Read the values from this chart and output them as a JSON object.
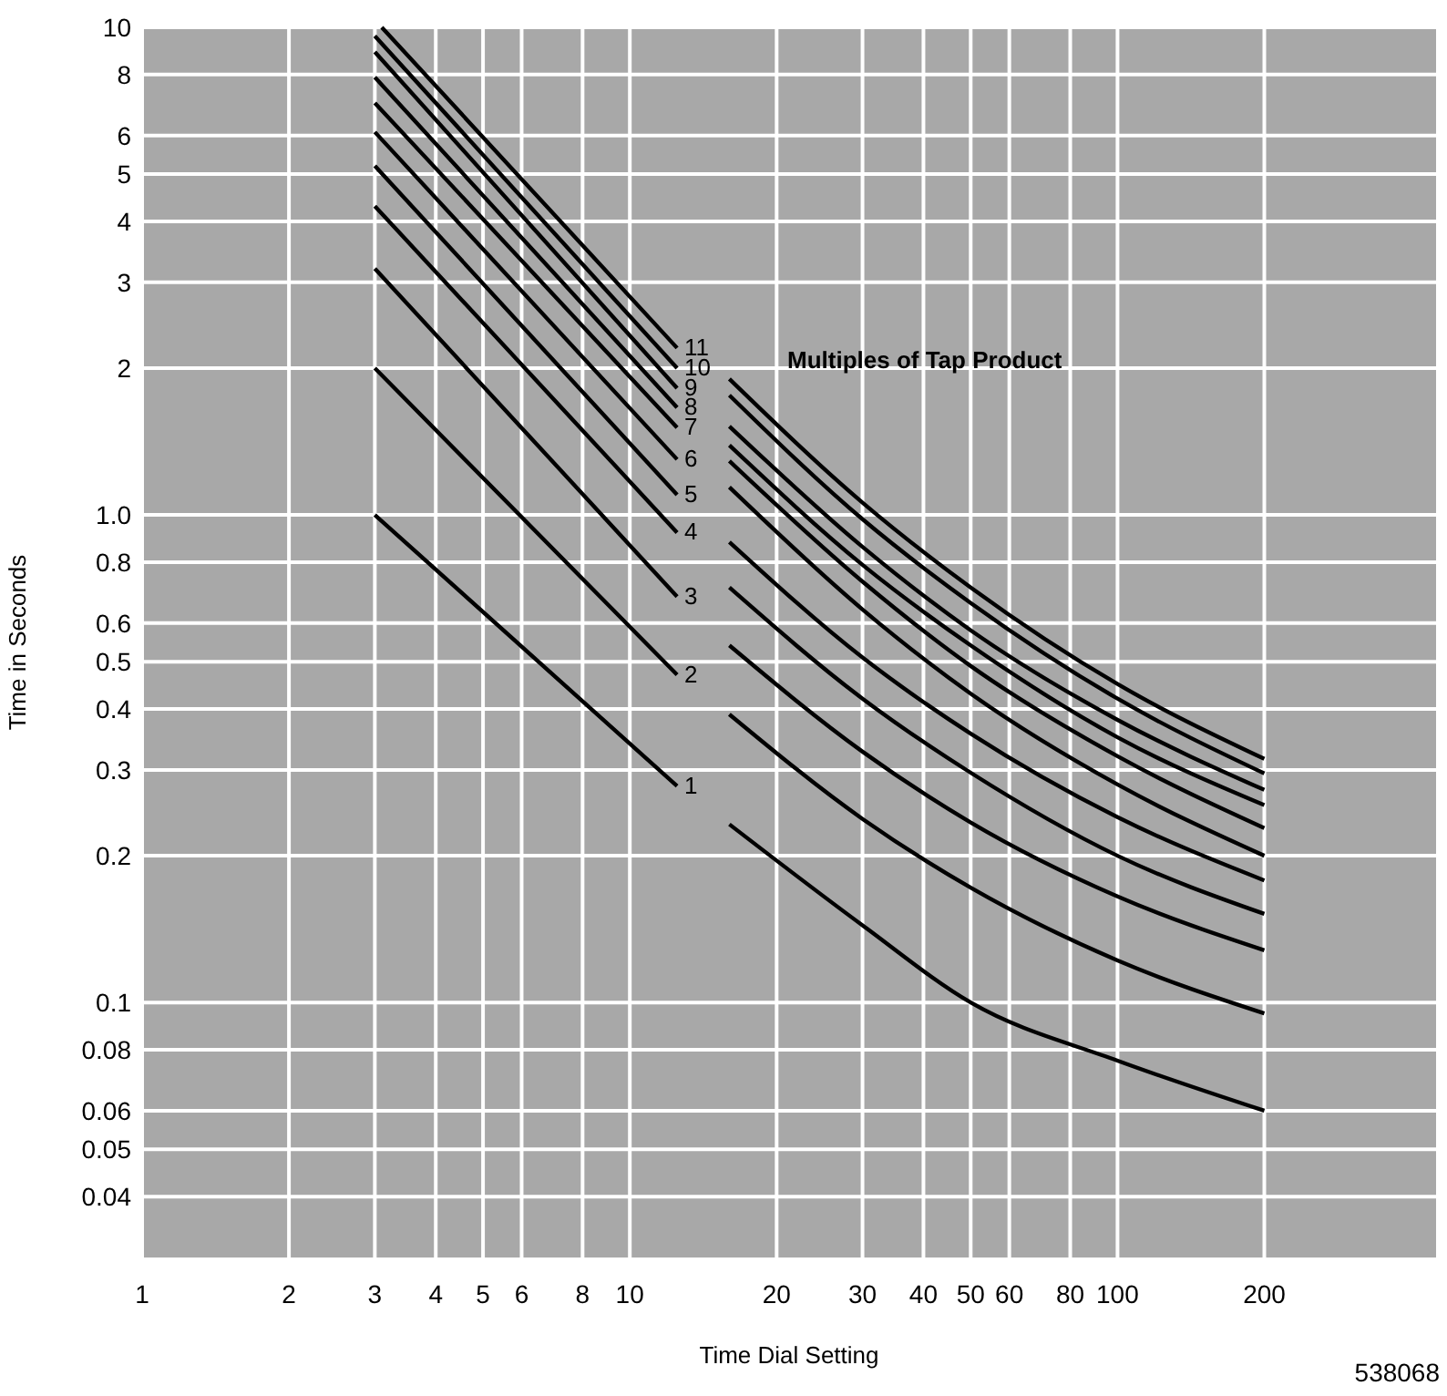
{
  "chart_data": {
    "type": "line",
    "xlabel": "Time Dial Setting",
    "ylabel": "Time in Seconds",
    "x": [
      3,
      12.5,
      14,
      16,
      30,
      50,
      100,
      200
    ],
    "series": [
      {
        "name": "1",
        "color": "#000000",
        "values": [
          1,
          0.278,
          null,
          0.232,
          0.144,
          0.1,
          0.076,
          0.06
        ]
      },
      {
        "name": "2",
        "color": "#000000",
        "values": [
          2,
          0.47,
          null,
          0.39,
          0.238,
          0.172,
          0.122,
          0.095
        ]
      },
      {
        "name": "3",
        "color": "#000000",
        "values": [
          3.2,
          0.68,
          null,
          0.54,
          0.327,
          0.234,
          0.165,
          0.128
        ]
      },
      {
        "name": "4",
        "color": "#000000",
        "values": [
          4.3,
          0.92,
          null,
          0.71,
          0.42,
          0.296,
          0.2,
          0.152
        ]
      },
      {
        "name": "5",
        "color": "#000000",
        "values": [
          5.2,
          1.1,
          null,
          0.88,
          0.51,
          0.356,
          0.24,
          0.178
        ]
      },
      {
        "name": "6",
        "color": "#000000",
        "values": [
          6.1,
          1.3,
          null,
          1.14,
          0.64,
          0.43,
          0.28,
          0.2
        ]
      },
      {
        "name": "7",
        "color": "#000000",
        "values": [
          7,
          1.51,
          null,
          1.29,
          0.73,
          0.49,
          0.32,
          0.228
        ]
      },
      {
        "name": "8",
        "color": "#000000",
        "values": [
          7.9,
          1.66,
          null,
          1.39,
          0.79,
          0.54,
          0.35,
          0.254
        ]
      },
      {
        "name": "9",
        "color": "#000000",
        "values": [
          8.9,
          1.82,
          null,
          1.52,
          0.86,
          0.58,
          0.38,
          0.273
        ]
      },
      {
        "name": "10",
        "color": "#000000",
        "values": [
          9.6,
          2,
          null,
          1.76,
          0.98,
          0.66,
          0.42,
          0.295
        ]
      },
      {
        "name": "11",
        "color": "#000000",
        "values": [
          10,
          2.2,
          null,
          1.9,
          1.06,
          0.71,
          0.45,
          0.316
        ],
        "x": [
          3.1,
          12.5,
          14,
          16,
          30,
          50,
          100,
          200
        ]
      }
    ],
    "log": "xy",
    "xlim": [
      1,
      450
    ],
    "ylim": [
      0.03,
      10
    ],
    "xticks": [
      1,
      2,
      3,
      4,
      5,
      6,
      8,
      10,
      20,
      30,
      40,
      50,
      60,
      80,
      100,
      200
    ],
    "yticks": [
      0.04,
      0.05,
      0.06,
      0.08,
      0.1,
      0.2,
      0.3,
      0.4,
      0.5,
      0.6,
      0.8,
      {
        "value": 1,
        "label": "1.0"
      },
      2,
      3,
      4,
      5,
      6,
      8,
      10
    ],
    "grid": true,
    "marker": "none",
    "line_style": "solid",
    "annotations": [
      "Multiples of Tap Product",
      "538068"
    ]
  }
}
